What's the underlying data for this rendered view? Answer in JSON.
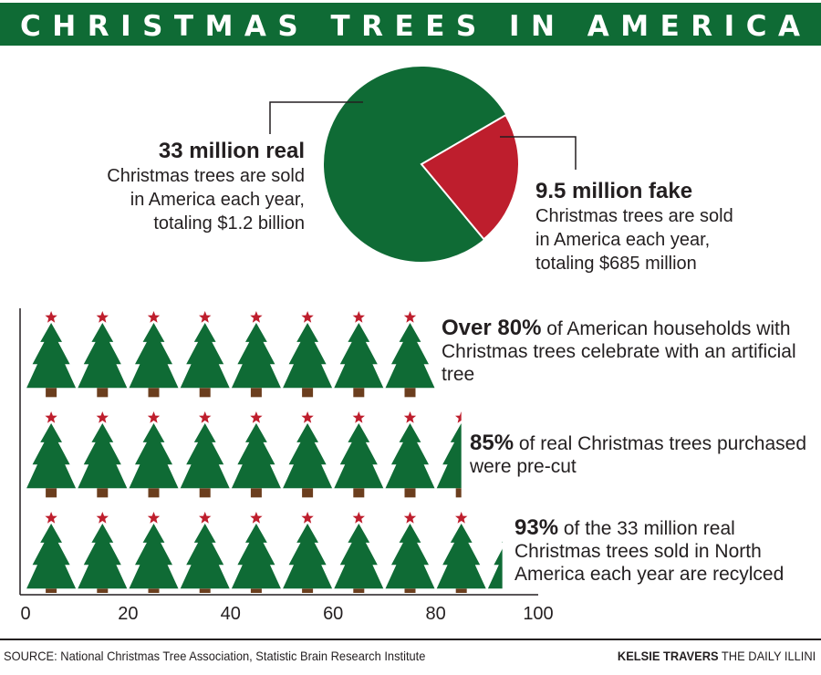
{
  "title": "CHRISTMAS TREES IN AMERICA",
  "colors": {
    "green": "#0f6b35",
    "red": "#be1e2d",
    "trunk": "#6b3e1e",
    "ink": "#231f20"
  },
  "pie": {
    "real": {
      "head": "33 million real",
      "line1": "Christmas trees are sold",
      "line2": "in America each year,",
      "line3": "totaling $1.2 billion"
    },
    "fake": {
      "head": "9.5 million fake",
      "line1": "Christmas trees are sold",
      "line2": "in America each year,",
      "line3": "totaling $685 million"
    }
  },
  "stats": [
    {
      "bold": "Over 80%",
      "text": " of American households with Christmas trees celebrate with an artificial tree"
    },
    {
      "bold": "85%",
      "text": " of real Christmas trees purchased were pre-cut"
    },
    {
      "bold": "93%",
      "text": " of the 33 million real Christmas trees sold in North America each year are recylced"
    }
  ],
  "footer": {
    "source": "SOURCE: National Christmas Tree Association, Statistic Brain Research Institute",
    "author": "KELSIE TRAVERS",
    "publication": " THE DAILY ILLINI"
  },
  "chart_data": [
    {
      "type": "pie",
      "categories": [
        "33 million real",
        "9.5 million fake"
      ],
      "values": [
        33,
        9.5
      ],
      "units": "million trees"
    },
    {
      "type": "bar",
      "orientation": "horizontal",
      "categories": [
        "Over 80%",
        "85%",
        "93%"
      ],
      "values": [
        80,
        85,
        93
      ],
      "xlim": [
        0,
        100
      ],
      "xticks": [
        "0",
        "20",
        "40",
        "60",
        "80",
        "100"
      ],
      "unit_per_icon": 10,
      "icon": "christmas-tree-icon"
    }
  ]
}
